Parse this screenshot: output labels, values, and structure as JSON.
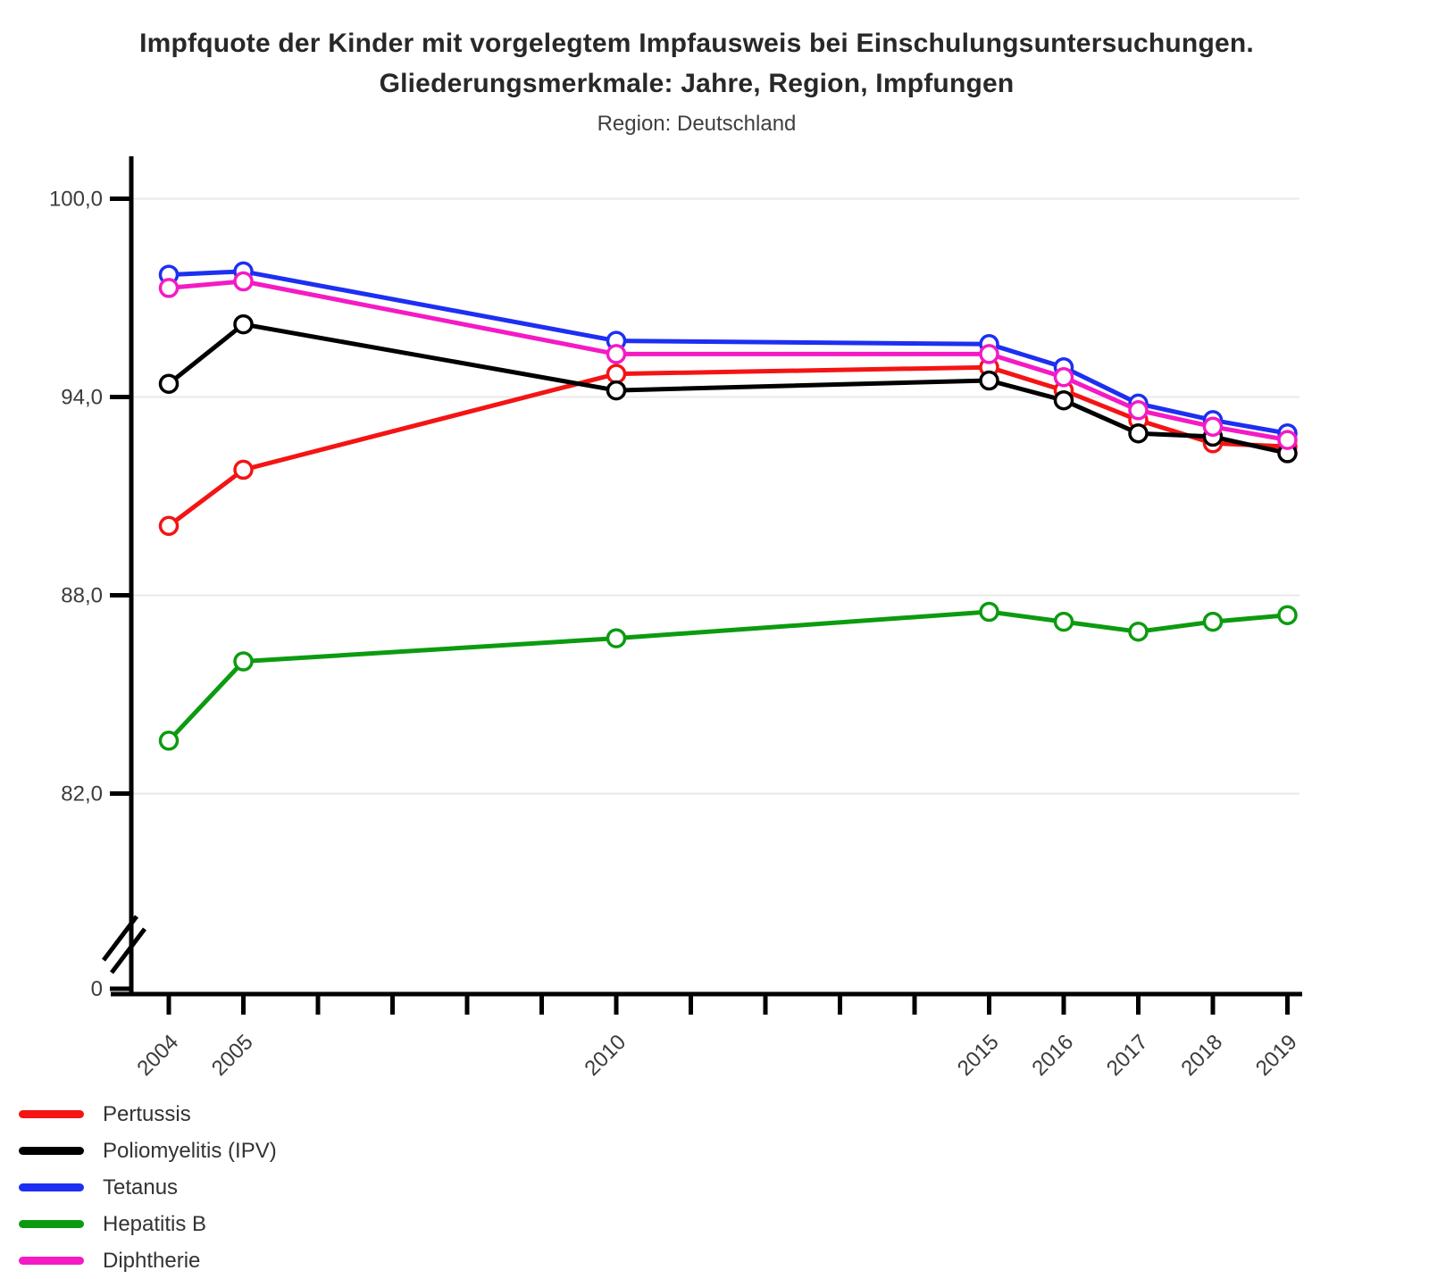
{
  "title": {
    "line1": "Impfquote der Kinder mit vorgelegtem Impfausweis bei Einschulungsuntersuchungen.",
    "line2": "Gliederungsmerkmale: Jahre, Region, Impfungen",
    "subtitle": "Region: Deutschland"
  },
  "chart_data": {
    "type": "line",
    "x": [
      2004,
      2005,
      2010,
      2015,
      2016,
      2017,
      2018,
      2019
    ],
    "series": [
      {
        "name": "Pertussis",
        "color": "#f41414",
        "values": [
          90.1,
          91.8,
          94.7,
          94.9,
          94.2,
          93.3,
          92.6,
          92.5
        ]
      },
      {
        "name": "Poliomyelitis (IPV)",
        "color": "#000000",
        "values": [
          94.4,
          96.2,
          94.2,
          94.5,
          93.9,
          92.9,
          92.8,
          92.3
        ]
      },
      {
        "name": "Tetanus",
        "color": "#1d2ff2",
        "values": [
          97.7,
          97.8,
          95.7,
          95.6,
          94.9,
          93.8,
          93.3,
          92.9
        ]
      },
      {
        "name": "Hepatitis B",
        "color": "#0c9b10",
        "values": [
          83.6,
          86.0,
          86.7,
          87.5,
          87.2,
          86.9,
          87.2,
          87.4
        ]
      },
      {
        "name": "Diphtherie",
        "color": "#f41ac4",
        "values": [
          97.3,
          97.5,
          95.3,
          95.3,
          94.6,
          93.6,
          93.1,
          92.7
        ]
      }
    ],
    "y_axis": {
      "ticks": [
        {
          "value": 100.0,
          "label": "100,0"
        },
        {
          "value": 94.0,
          "label": "94,0"
        },
        {
          "value": 88.0,
          "label": "88,0"
        },
        {
          "value": 82.0,
          "label": "82,0"
        },
        {
          "value": 0,
          "label": "0"
        }
      ],
      "broken_axis": true,
      "range_shown": [
        82,
        100
      ]
    },
    "x_axis": {
      "tick_years": [
        2004,
        2005,
        2006,
        2007,
        2008,
        2009,
        2010,
        2011,
        2012,
        2013,
        2014,
        2015,
        2016,
        2017,
        2018,
        2019
      ],
      "labeled_years": [
        2004,
        2005,
        2010,
        2015,
        2016,
        2017,
        2018,
        2019
      ]
    },
    "grid": "horizontal",
    "legend_position": "bottom-left"
  },
  "legend": {
    "items": [
      {
        "label": "Pertussis",
        "color": "#f41414"
      },
      {
        "label": "Poliomyelitis (IPV)",
        "color": "#000000"
      },
      {
        "label": "Tetanus",
        "color": "#1d2ff2"
      },
      {
        "label": "Hepatitis B",
        "color": "#0c9b10"
      },
      {
        "label": "Diphtherie",
        "color": "#f41ac4"
      }
    ]
  },
  "colors": {
    "grid": "#e9e9e9",
    "axis": "#000000",
    "tick_label": "#3c3c3c",
    "title": "#282828",
    "background": "#ffffff"
  }
}
